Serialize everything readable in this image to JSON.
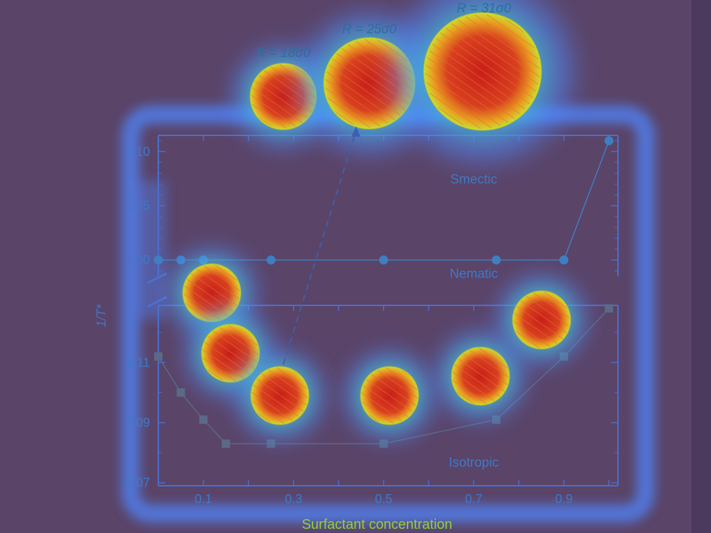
{
  "colors": {
    "background": "#5a4468",
    "axis": "#4a6fd0",
    "marker_circle": "#3f7fc0",
    "marker_square": "#5a6a86",
    "heat_hot": "#c8281e",
    "heat_cool": "#4f86ff"
  },
  "chart_data": {
    "type": "scatter",
    "title": "",
    "xlabel": "Surfactant concentration",
    "ylabel": "1/T*",
    "xlim": [
      0,
      1.02
    ],
    "x_ticks": [
      "0.1",
      "0.3",
      "0.5",
      "0.7",
      "0.9"
    ],
    "x_tick_values": [
      0.1,
      0.3,
      0.5,
      0.7,
      0.9
    ],
    "upper_panel": {
      "ylim": [
        0.985,
        1.115
      ],
      "y_ticks": [
        "1.00",
        "1.05",
        "1.10"
      ],
      "y_tick_values": [
        1.0,
        1.05,
        1.1
      ],
      "series": {
        "marker": "circle",
        "x": [
          0.0,
          0.05,
          0.1,
          0.25,
          0.5,
          0.75,
          0.9,
          1.0
        ],
        "y": [
          1.0,
          1.0,
          1.0,
          1.0,
          1.0,
          1.0,
          1.0,
          1.11
        ]
      },
      "region_labels": [
        {
          "text": "Smectic",
          "x": 0.7,
          "y": 1.075
        },
        {
          "text": "Nematic",
          "x": 0.7,
          "y": 0.988
        }
      ]
    },
    "lower_panel": {
      "ylim": [
        0.069,
        0.129
      ],
      "y_ticks": [
        "0.07",
        "0.09",
        "0.11"
      ],
      "y_tick_values": [
        0.07,
        0.09,
        0.11
      ],
      "series": {
        "marker": "square",
        "x": [
          0.0,
          0.05,
          0.1,
          0.15,
          0.25,
          0.5,
          0.75,
          0.9,
          1.0
        ],
        "y": [
          0.112,
          0.1,
          0.091,
          0.083,
          0.083,
          0.083,
          0.091,
          0.112,
          0.128
        ]
      },
      "region_labels": [
        {
          "text": "Isotropic",
          "x": 0.7,
          "y": 0.077
        }
      ]
    },
    "droplet_labels": [
      "R = 18σ0",
      "R = 25σ0",
      "R = 31σ0"
    ]
  }
}
